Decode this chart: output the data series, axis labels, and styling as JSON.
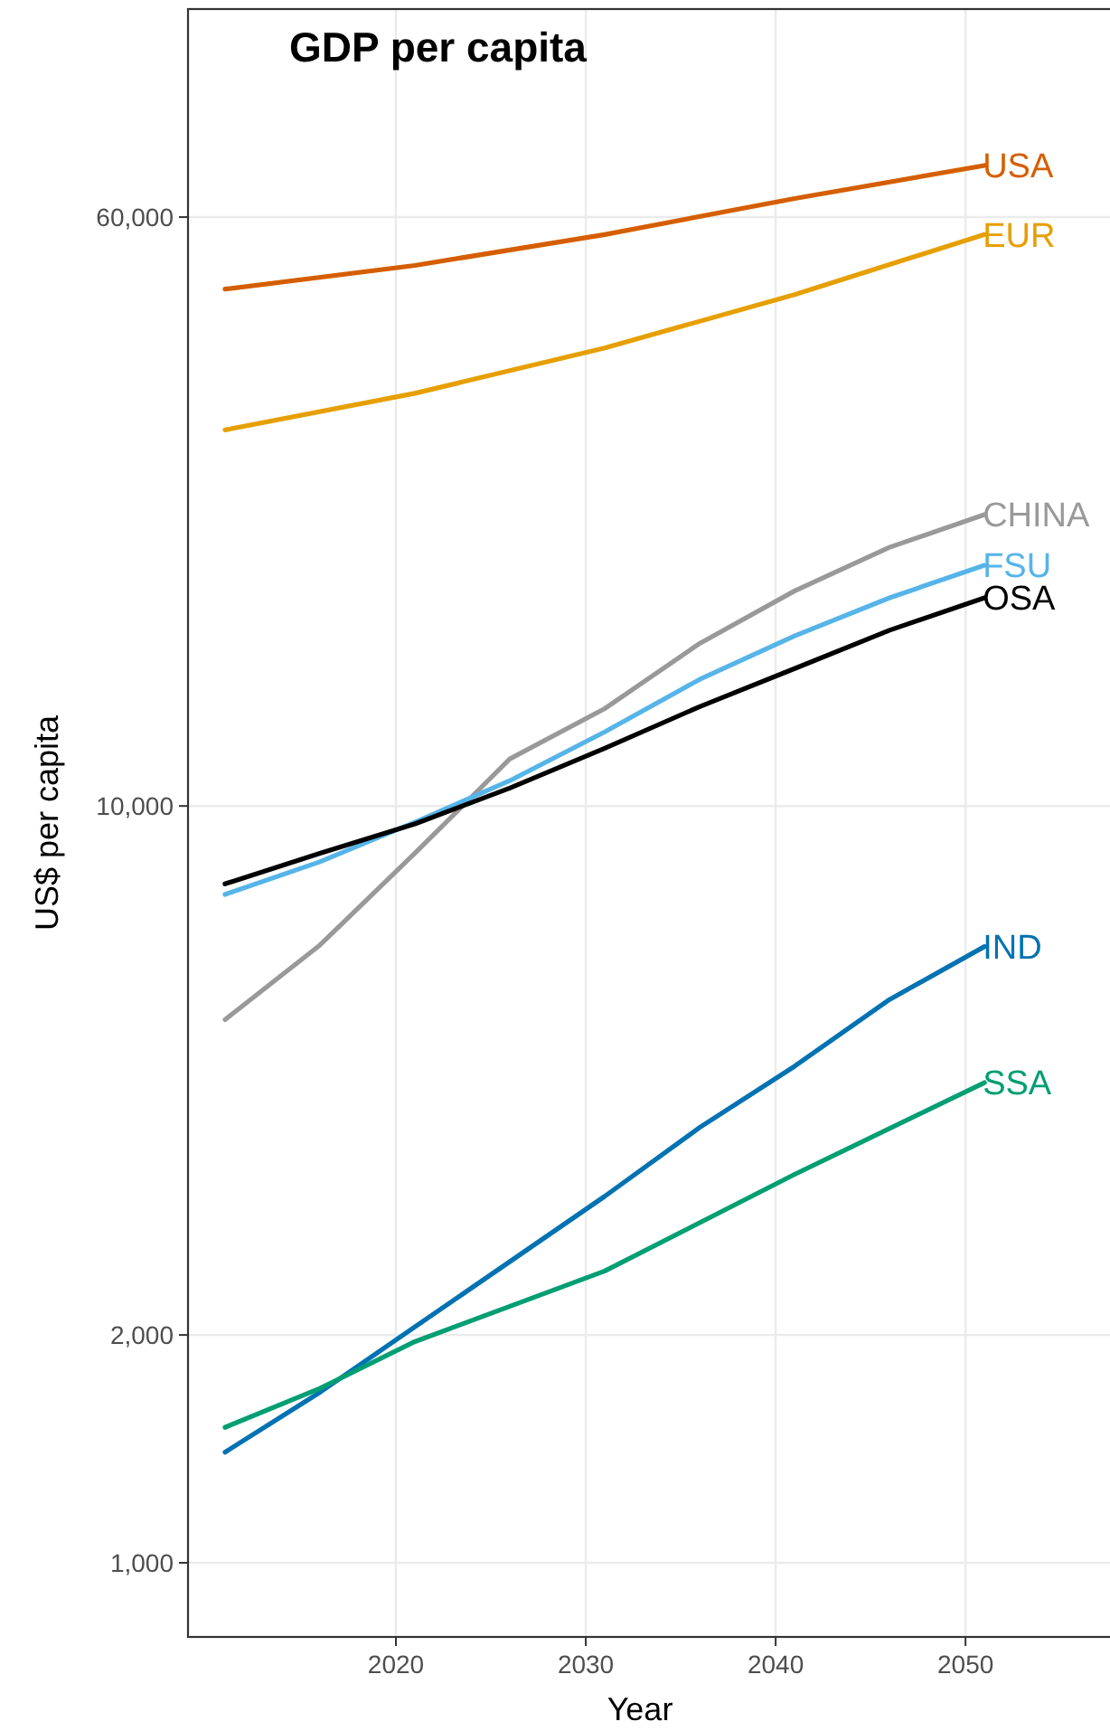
{
  "chart_data": {
    "type": "line",
    "title": "GDP per capita",
    "xlabel": "Year",
    "ylabel": "US$ per capita",
    "log": true,
    "grid": true,
    "line_style": "solid",
    "xlim": [
      2009.05,
      2057.8
    ],
    "xticks": [
      2020,
      2030,
      2040,
      2050
    ],
    "ylim": [
      798,
      113000
    ],
    "yticks": [
      {
        "value": 1000,
        "label": "1,000"
      },
      {
        "value": 2000,
        "label": "2,000"
      },
      {
        "value": 10000,
        "label": "10,000"
      },
      {
        "value": 60000,
        "label": "60,000"
      }
    ],
    "series": [
      {
        "name": "USA",
        "color": "#d55e00",
        "x": [
          2011,
          2021,
          2031,
          2041,
          2051
        ],
        "values": [
          48200,
          51800,
          56900,
          63500,
          70200
        ]
      },
      {
        "name": "EUR",
        "color": "#e69f00",
        "x": [
          2011,
          2021,
          2031,
          2041,
          2051
        ],
        "values": [
          31400,
          35100,
          40300,
          47400,
          56900
        ]
      },
      {
        "name": "CHINA",
        "color": "#999999",
        "x": [
          2011,
          2016,
          2021,
          2026,
          2031,
          2036,
          2041,
          2046,
          2051
        ],
        "values": [
          5220,
          6550,
          8660,
          11540,
          13450,
          16400,
          19240,
          21970,
          24270
        ]
      },
      {
        "name": "FSU",
        "color": "#56b4e9",
        "x": [
          2011,
          2016,
          2021,
          2026,
          2031,
          2036,
          2041,
          2046,
          2051
        ],
        "values": [
          7640,
          8440,
          9520,
          10800,
          12530,
          14700,
          16780,
          18840,
          20800
        ]
      },
      {
        "name": "OSA",
        "color": "#000000",
        "x": [
          2011,
          2016,
          2021,
          2026,
          2031,
          2036,
          2041,
          2046,
          2051
        ],
        "values": [
          7890,
          8660,
          9470,
          10560,
          11920,
          13530,
          15190,
          17070,
          18840
        ]
      },
      {
        "name": "IND",
        "color": "#0072b2",
        "x": [
          2011,
          2016,
          2021,
          2026,
          2031,
          2036,
          2041,
          2046,
          2051
        ],
        "values": [
          1400,
          1680,
          2050,
          2500,
          3050,
          3760,
          4530,
          5550,
          6520
        ]
      },
      {
        "name": "SSA",
        "color": "#009e73",
        "x": [
          2011,
          2016,
          2021,
          2031,
          2041,
          2051
        ],
        "values": [
          1510,
          1700,
          1960,
          2430,
          3260,
          4310
        ]
      }
    ]
  }
}
